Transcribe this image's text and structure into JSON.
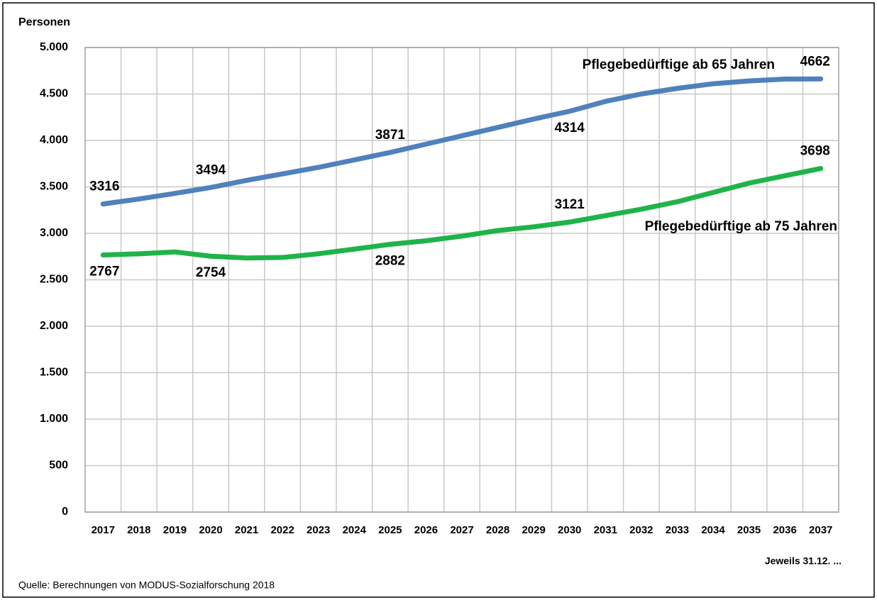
{
  "chart_data": {
    "type": "line",
    "y_label": "Personen",
    "x_label": "Jeweils 31.12. ...",
    "source": "Quelle:  Berechnungen von MODUS-Sozialforschung 2018",
    "categories": [
      "2017",
      "2018",
      "2019",
      "2020",
      "2021",
      "2022",
      "2023",
      "2024",
      "2025",
      "2026",
      "2027",
      "2028",
      "2029",
      "2030",
      "2031",
      "2032",
      "2033",
      "2034",
      "2035",
      "2036",
      "2037"
    ],
    "series": [
      {
        "name": "Pflegebedürftige ab 65 Jahren",
        "color": "#4f81bd",
        "values": [
          3316,
          3370,
          3430,
          3494,
          3570,
          3640,
          3710,
          3790,
          3871,
          3960,
          4050,
          4140,
          4230,
          4314,
          4420,
          4500,
          4560,
          4610,
          4640,
          4660,
          4662
        ],
        "value_labels": [
          "3316",
          null,
          null,
          "3494",
          null,
          null,
          null,
          null,
          "3871",
          null,
          null,
          null,
          null,
          "4314",
          null,
          null,
          null,
          null,
          null,
          null,
          "4662"
        ]
      },
      {
        "name": "Pflegebedürftige ab 75 Jahren",
        "color": "#1fb34a",
        "values": [
          2767,
          2780,
          2800,
          2754,
          2735,
          2740,
          2780,
          2830,
          2882,
          2920,
          2970,
          3030,
          3070,
          3121,
          3190,
          3260,
          3340,
          3440,
          3540,
          3620,
          3698
        ],
        "value_labels": [
          "2767",
          null,
          null,
          "2754",
          null,
          null,
          null,
          null,
          "2882",
          null,
          null,
          null,
          null,
          "3121",
          null,
          null,
          null,
          null,
          null,
          null,
          "3698"
        ]
      }
    ],
    "ylim": [
      0,
      5000
    ],
    "yticks": [
      0,
      500,
      {
        "value": 1000,
        "label": "1.000"
      },
      {
        "value": 1500,
        "label": "1.500"
      },
      {
        "value": 2000,
        "label": "2.000"
      },
      {
        "value": 2500,
        "label": "2.500"
      },
      {
        "value": 3000,
        "label": "3.000"
      },
      {
        "value": 3500,
        "label": "3.500"
      },
      {
        "value": 4000,
        "label": "4.000"
      },
      {
        "value": 4500,
        "label": "4.500"
      },
      {
        "value": 5000,
        "label": "5.000"
      }
    ],
    "grid": true
  }
}
